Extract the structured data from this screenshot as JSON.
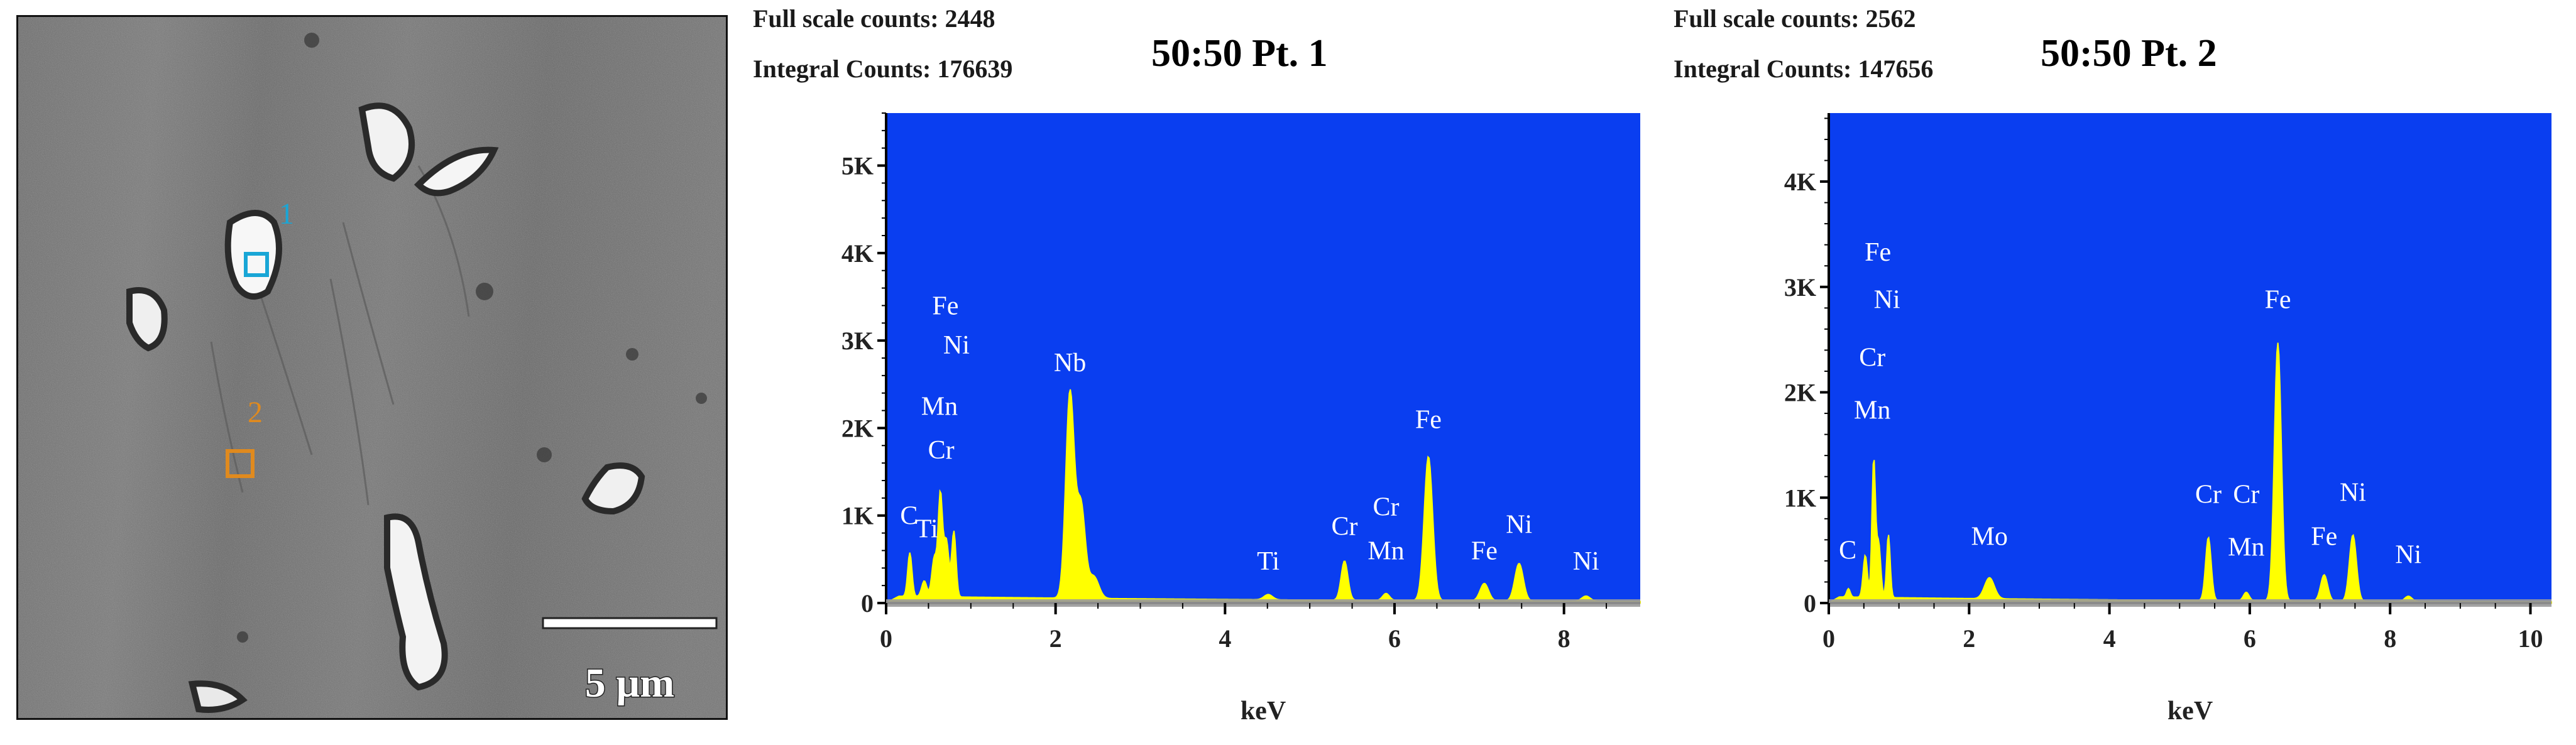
{
  "sem_image": {
    "scale_label": "5 µm",
    "markers": [
      {
        "label": "1",
        "color": "#19a6d6"
      },
      {
        "label": "2",
        "color": "#e08a1e"
      }
    ]
  },
  "chart_data": [
    {
      "type": "line",
      "title": "50:50 Pt. 1",
      "header_lines": [
        "Full scale counts: 2448",
        "Integral Counts: 176639"
      ],
      "xlabel": "keV",
      "ylabel": "",
      "xlim": [
        0,
        8.9
      ],
      "ylim": [
        0,
        5600
      ],
      "xticks": [
        0,
        2,
        4,
        6,
        8
      ],
      "yticks": [
        0,
        1000,
        2000,
        3000,
        4000,
        5000
      ],
      "ytick_labels": [
        "0",
        "1K",
        "2K",
        "3K",
        "4K",
        "5K"
      ],
      "grid": false,
      "background_color": "#0a3ef0",
      "fill_color": "#ffff00",
      "baseline": 80,
      "peaks": [
        {
          "x": 0.28,
          "y": 500,
          "w": 0.025
        },
        {
          "x": 0.45,
          "y": 180,
          "w": 0.03
        },
        {
          "x": 0.57,
          "y": 450,
          "w": 0.03
        },
        {
          "x": 0.64,
          "y": 1150,
          "w": 0.025
        },
        {
          "x": 0.71,
          "y": 650,
          "w": 0.03
        },
        {
          "x": 0.8,
          "y": 750,
          "w": 0.025
        },
        {
          "x": 2.17,
          "y": 2350,
          "w": 0.05
        },
        {
          "x": 2.3,
          "y": 1050,
          "w": 0.05
        },
        {
          "x": 2.45,
          "y": 250,
          "w": 0.06
        },
        {
          "x": 4.51,
          "y": 60,
          "w": 0.05
        },
        {
          "x": 5.41,
          "y": 450,
          "w": 0.04
        },
        {
          "x": 5.9,
          "y": 80,
          "w": 0.04
        },
        {
          "x": 6.4,
          "y": 1650,
          "w": 0.05
        },
        {
          "x": 7.06,
          "y": 200,
          "w": 0.05
        },
        {
          "x": 7.47,
          "y": 430,
          "w": 0.05
        },
        {
          "x": 8.26,
          "y": 60,
          "w": 0.05
        }
      ],
      "annotations": [
        {
          "text": "Fe",
          "x": 0.7,
          "y": 3300
        },
        {
          "text": "Ni",
          "x": 0.83,
          "y": 2850
        },
        {
          "text": "Mn",
          "x": 0.63,
          "y": 2150
        },
        {
          "text": "Cr",
          "x": 0.65,
          "y": 1650
        },
        {
          "text": "C",
          "x": 0.27,
          "y": 900
        },
        {
          "text": "Ti",
          "x": 0.48,
          "y": 750
        },
        {
          "text": "Nb",
          "x": 2.17,
          "y": 2650
        },
        {
          "text": "Ti",
          "x": 4.51,
          "y": 380
        },
        {
          "text": "Cr",
          "x": 5.41,
          "y": 780
        },
        {
          "text": "Cr",
          "x": 5.9,
          "y": 1000
        },
        {
          "text": "Mn",
          "x": 5.9,
          "y": 500
        },
        {
          "text": "Fe",
          "x": 6.4,
          "y": 2000
        },
        {
          "text": "Fe",
          "x": 7.06,
          "y": 500
        },
        {
          "text": "Ni",
          "x": 7.47,
          "y": 800
        },
        {
          "text": "Ni",
          "x": 8.26,
          "y": 380
        }
      ]
    },
    {
      "type": "line",
      "title": "50:50 Pt. 2",
      "header_lines": [
        "Full scale counts: 2562",
        "Integral Counts: 147656"
      ],
      "xlabel": "keV",
      "ylabel": "",
      "xlim": [
        0,
        10.3
      ],
      "ylim": [
        0,
        4650
      ],
      "xticks": [
        0,
        2,
        4,
        6,
        8,
        10
      ],
      "yticks": [
        0,
        1000,
        2000,
        3000,
        4000
      ],
      "ytick_labels": [
        "0",
        "1K",
        "2K",
        "3K",
        "4K"
      ],
      "grid": false,
      "background_color": "#0a3ef0",
      "fill_color": "#ffff00",
      "baseline": 60,
      "peaks": [
        {
          "x": 0.28,
          "y": 80,
          "w": 0.025
        },
        {
          "x": 0.52,
          "y": 400,
          "w": 0.03
        },
        {
          "x": 0.64,
          "y": 1300,
          "w": 0.025
        },
        {
          "x": 0.71,
          "y": 520,
          "w": 0.03
        },
        {
          "x": 0.85,
          "y": 600,
          "w": 0.025
        },
        {
          "x": 2.29,
          "y": 200,
          "w": 0.07
        },
        {
          "x": 5.41,
          "y": 600,
          "w": 0.04
        },
        {
          "x": 5.95,
          "y": 80,
          "w": 0.04
        },
        {
          "x": 6.4,
          "y": 2450,
          "w": 0.05
        },
        {
          "x": 7.06,
          "y": 250,
          "w": 0.05
        },
        {
          "x": 7.47,
          "y": 630,
          "w": 0.05
        },
        {
          "x": 8.26,
          "y": 50,
          "w": 0.05
        }
      ],
      "annotations": [
        {
          "text": "Fe",
          "x": 0.7,
          "y": 3250
        },
        {
          "text": "Ni",
          "x": 0.83,
          "y": 2800
        },
        {
          "text": "Cr",
          "x": 0.62,
          "y": 2250
        },
        {
          "text": "Mn",
          "x": 0.62,
          "y": 1750
        },
        {
          "text": "C",
          "x": 0.27,
          "y": 420
        },
        {
          "text": "Mo",
          "x": 2.29,
          "y": 550
        },
        {
          "text": "Cr",
          "x": 5.41,
          "y": 950
        },
        {
          "text": "Cr",
          "x": 5.95,
          "y": 950
        },
        {
          "text": "Mn",
          "x": 5.95,
          "y": 450
        },
        {
          "text": "Fe",
          "x": 6.4,
          "y": 2800
        },
        {
          "text": "Fe",
          "x": 7.06,
          "y": 550
        },
        {
          "text": "Ni",
          "x": 7.47,
          "y": 970
        },
        {
          "text": "Ni",
          "x": 8.26,
          "y": 380
        }
      ]
    }
  ]
}
